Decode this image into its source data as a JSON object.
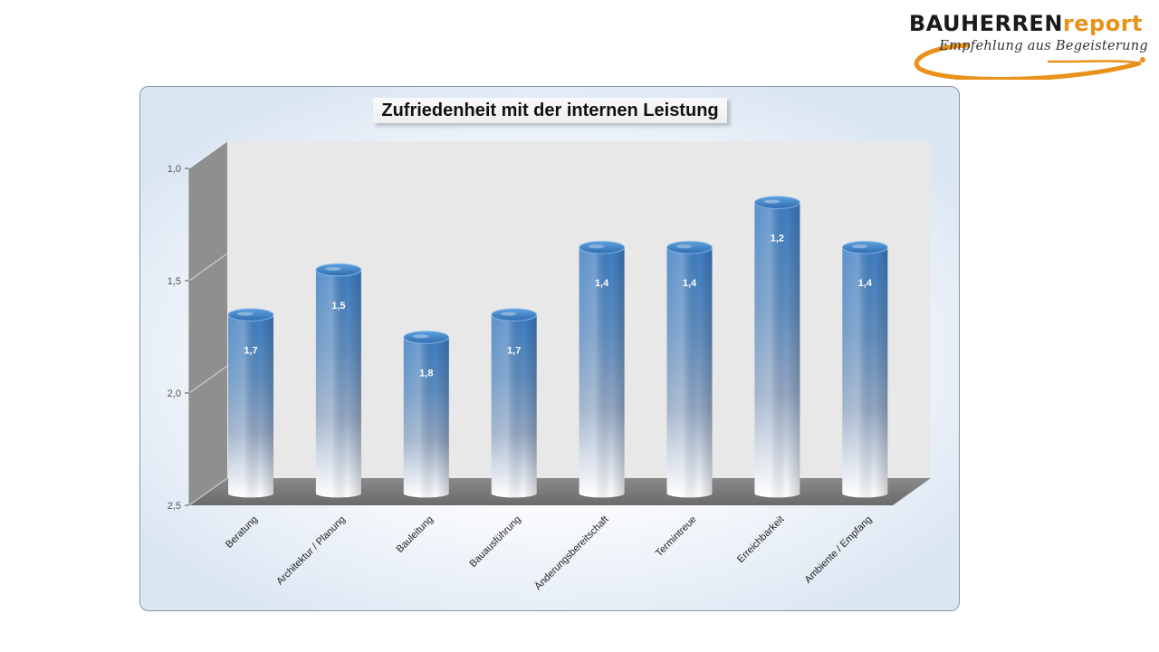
{
  "logo": {
    "brand_main": "BAUHERREN",
    "brand_accent": "report",
    "slogan": "Empfehlung aus Begeisterung",
    "colors": {
      "main": "#1a1a1a",
      "accent": "#e8921a"
    }
  },
  "chart_data": {
    "type": "bar",
    "title": "Zufriedenheit mit der internen Leistung",
    "categories": [
      "Beratung",
      "Architektur / Planung",
      "Bauleitung",
      "Bauausführung",
      "Änderungsbereitschaft",
      "Termintreue",
      "Erreichbarkeit",
      "Ambiente / Empfang"
    ],
    "values": [
      1.7,
      1.5,
      1.8,
      1.7,
      1.4,
      1.4,
      1.2,
      1.4
    ],
    "value_labels": [
      "1,7",
      "1,5",
      "1,8",
      "1,7",
      "1,4",
      "1,4",
      "1,2",
      "1,4"
    ],
    "ylim": [
      1.0,
      2.5
    ],
    "y_inverted": true,
    "y_ticks": [
      1.0,
      1.5,
      2.0,
      2.5
    ],
    "y_tick_labels": [
      "1,0",
      "1,5",
      "2,0",
      "2,5"
    ],
    "xlabel": "",
    "ylabel": "",
    "grid": false,
    "style": "3d-cylinder",
    "colors": {
      "bar_top": "#3f7ec1",
      "bar_bottom": "#ffffff",
      "wall": "#e8e8e8",
      "side_wall": "#8f8f8f",
      "floor": "#7d7d7d"
    }
  }
}
